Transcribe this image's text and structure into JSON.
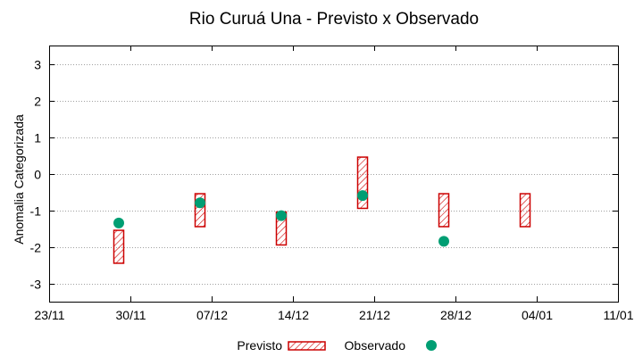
{
  "chart_data": {
    "type": "scatter",
    "title": "Rio Curuá Una - Previsto x Observado",
    "xlabel": "",
    "ylabel": "Anomalia Categorizada",
    "ylim": [
      -3.5,
      3.5
    ],
    "xlim": [
      "2023-11-23",
      "2024-01-11"
    ],
    "yticks": [
      -3,
      -2,
      -1,
      0,
      1,
      2,
      3
    ],
    "xticks": [
      {
        "date": "2023-11-23",
        "label": "23/11"
      },
      {
        "date": "2023-11-30",
        "label": "30/11"
      },
      {
        "date": "2023-12-07",
        "label": "07/12"
      },
      {
        "date": "2023-12-14",
        "label": "14/12"
      },
      {
        "date": "2023-12-21",
        "label": "21/12"
      },
      {
        "date": "2023-12-28",
        "label": "28/12"
      },
      {
        "date": "2024-01-04",
        "label": "04/01"
      },
      {
        "date": "2024-01-11",
        "label": "11/01"
      }
    ],
    "grid": "horizontal dotted",
    "legend_position": "bottom",
    "series": [
      {
        "name": "Previsto",
        "style": "hatched-range",
        "color": "#cc0000",
        "points": [
          {
            "x": "2023-11-29",
            "low": -2.45,
            "high": -1.55
          },
          {
            "x": "2023-12-06",
            "low": -1.45,
            "high": -0.55
          },
          {
            "x": "2023-12-13",
            "low": -1.95,
            "high": -1.05
          },
          {
            "x": "2023-12-20",
            "low": -0.95,
            "high": 0.45
          },
          {
            "x": "2023-12-27",
            "low": -1.45,
            "high": -0.55
          },
          {
            "x": "2024-01-03",
            "low": -1.45,
            "high": -0.55
          }
        ]
      },
      {
        "name": "Observado",
        "style": "point",
        "color": "#009e73",
        "points": [
          {
            "x": "2023-11-29",
            "y": -1.35
          },
          {
            "x": "2023-12-06",
            "y": -0.8
          },
          {
            "x": "2023-12-13",
            "y": -1.15
          },
          {
            "x": "2023-12-20",
            "y": -0.6
          },
          {
            "x": "2023-12-27",
            "y": -1.85
          }
        ]
      }
    ]
  }
}
